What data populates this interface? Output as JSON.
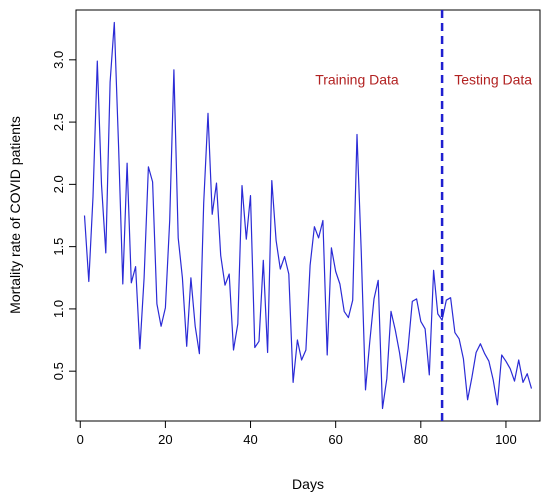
{
  "chart_data": {
    "type": "line",
    "xlabel": "Days",
    "ylabel": "Mortality rate of COVID patients",
    "xlim": [
      -1,
      108
    ],
    "ylim": [
      0.1,
      3.4
    ],
    "xticks": [
      0,
      20,
      40,
      60,
      80,
      100
    ],
    "yticks": [
      0.5,
      1.0,
      1.5,
      2.0,
      2.5,
      3.0
    ],
    "xtick_labels": [
      "0",
      "20",
      "40",
      "60",
      "80",
      "100"
    ],
    "ytick_labels": [
      "0.5",
      "1.0",
      "1.5",
      "2.0",
      "2.5",
      "3.0"
    ],
    "series_color": "#2b2bd6",
    "split_line": {
      "x": 85,
      "color": "#1f1fd0",
      "style": "dashed"
    },
    "annotations": [
      {
        "text": "Training Data",
        "x": 65,
        "y": 2.8
      },
      {
        "text": "Testing Data",
        "x": 97,
        "y": 2.8
      }
    ],
    "series": [
      {
        "x": [
          1,
          2,
          3,
          4,
          5,
          6,
          7,
          8,
          9,
          10,
          11,
          12,
          13,
          14,
          15,
          16,
          17,
          18,
          19,
          20,
          21,
          22,
          23,
          24,
          25,
          26,
          27,
          28,
          29,
          30,
          31,
          32,
          33,
          34,
          35,
          36,
          37,
          38,
          39,
          40,
          41,
          42,
          43,
          44,
          45,
          46,
          47,
          48,
          49,
          50,
          51,
          52,
          53,
          54,
          55,
          56,
          57,
          58,
          59,
          60,
          61,
          62,
          63,
          64,
          65,
          66,
          67,
          68,
          69,
          70,
          71,
          72,
          73,
          74,
          75,
          76,
          77,
          78,
          79,
          80,
          81,
          82,
          83,
          84,
          85,
          86,
          87,
          88,
          89,
          90,
          91,
          92,
          93,
          94,
          95,
          96,
          97,
          98,
          99,
          100,
          101,
          102,
          103,
          104,
          105,
          106
        ],
        "y": [
          1.75,
          1.22,
          1.9,
          2.99,
          2.0,
          1.45,
          2.82,
          3.3,
          2.3,
          1.2,
          2.17,
          1.21,
          1.34,
          0.68,
          1.25,
          2.14,
          2.02,
          1.04,
          0.86,
          1.01,
          1.71,
          2.92,
          1.57,
          1.25,
          0.7,
          1.25,
          0.86,
          0.64,
          1.85,
          2.57,
          1.76,
          2.01,
          1.43,
          1.19,
          1.28,
          0.67,
          0.88,
          1.99,
          1.56,
          1.91,
          0.69,
          0.74,
          1.39,
          0.65,
          2.03,
          1.55,
          1.32,
          1.42,
          1.28,
          0.41,
          0.75,
          0.59,
          0.67,
          1.35,
          1.66,
          1.57,
          1.71,
          0.63,
          1.49,
          1.3,
          1.2,
          0.98,
          0.93,
          1.07,
          2.4,
          1.47,
          0.35,
          0.73,
          1.08,
          1.23,
          0.2,
          0.44,
          0.98,
          0.83,
          0.65,
          0.41,
          0.68,
          1.06,
          1.08,
          0.9,
          0.84,
          0.47,
          1.31,
          0.96,
          0.91,
          1.07,
          1.09,
          0.81,
          0.76,
          0.6,
          0.27,
          0.45,
          0.65,
          0.72,
          0.64,
          0.58,
          0.43,
          0.23,
          0.63,
          0.58,
          0.52,
          0.42,
          0.59,
          0.41,
          0.48,
          0.36
        ]
      }
    ]
  }
}
